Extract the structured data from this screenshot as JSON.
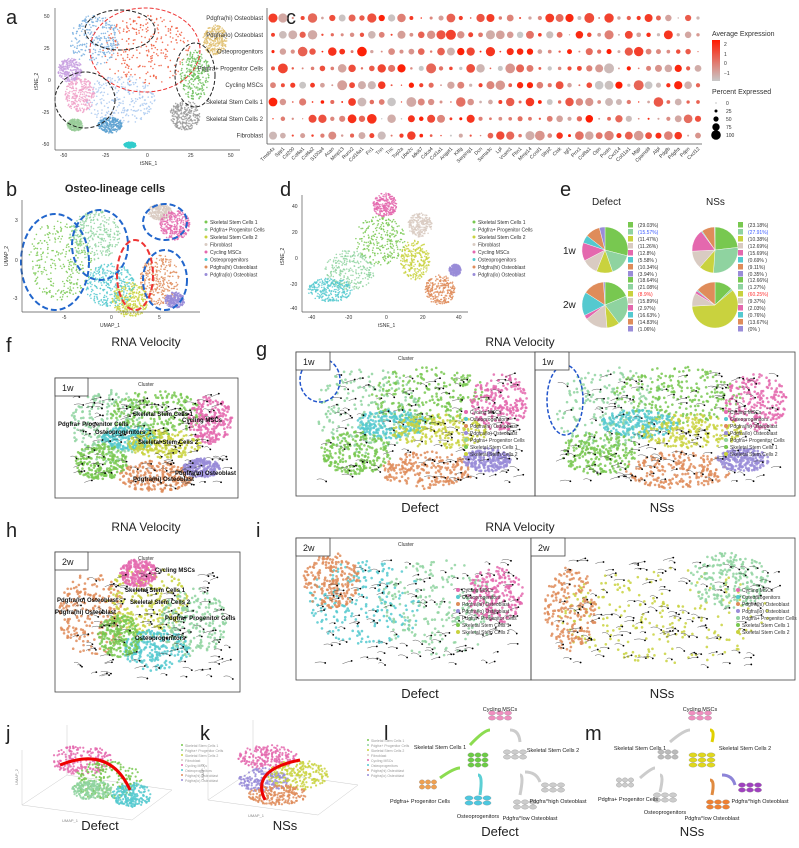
{
  "panel_letters": {
    "a": "a",
    "b": "b",
    "c": "c",
    "d": "d",
    "e": "e",
    "f": "f",
    "g": "g",
    "h": "h",
    "i": "i",
    "j": "j",
    "k": "k",
    "l": "l",
    "m": "m"
  },
  "clusters": [
    {
      "name": "Skeletal Stem Cells 1",
      "color": "#78c850"
    },
    {
      "name": "Pdgfra+ Progenitor Cells",
      "color": "#8fd3a0"
    },
    {
      "name": "Skeletal Stem Cells 2",
      "color": "#c9d23e"
    },
    {
      "name": "Fibroblast",
      "color": "#d9cbc2"
    },
    {
      "name": "Cycling MSCs",
      "color": "#e468ae"
    },
    {
      "name": "Osteoprogenitors",
      "color": "#54c9cf"
    },
    {
      "name": "Pdgfra(hi) Osteoblast",
      "color": "#df8c5a"
    },
    {
      "name": "Pdgfra(lo) Osteoblast",
      "color": "#998cd8"
    }
  ],
  "panel_a": {
    "xlabel": "tSNE_1",
    "ylabel": "tSNE_2",
    "xticks": [
      "-50",
      "-25",
      "0",
      "25",
      "50"
    ],
    "yticks": [
      "50",
      "25",
      "0",
      "-25",
      "-50"
    ]
  },
  "panel_b": {
    "title": "Osteo-lineage cells",
    "xlabel": "UMAP_1",
    "ylabel": "UMAP_2",
    "xticks": [
      "-5",
      "0",
      "5"
    ],
    "yticks": [
      "3",
      "0",
      "-3"
    ]
  },
  "panel_c": {
    "rows": [
      "Pdgfra(hi) Osteoblast",
      "Pdgfra(lo) Osteoblast",
      "Osteoprogenitors",
      "Pdgfra+ Progenitor Cells",
      "Cycling MSCs",
      "Skeletal Stem Cells 1",
      "Skeletal Stem Cells 2",
      "Fibroblast"
    ],
    "genes": [
      "Tmsb4x",
      "Spp1",
      "Cd200",
      "Col6a1",
      "Col6a2",
      "S100a4",
      "Acan",
      "Mmp13",
      "Runx2",
      "Col16a1",
      "Fn1",
      "Tnn",
      "Tnc",
      "Top2a",
      "Ube2c",
      "Mki67",
      "Cdca4",
      "Col1a1",
      "Angpt1",
      "Kitlg",
      "Serping1",
      "Dcn",
      "Sema3c",
      "Lpl",
      "Vcam1",
      "Fbn1",
      "Mmp14",
      "Ccnd1",
      "Sfrp2",
      "Ctsk",
      "Igf1",
      "Prrx1",
      "Col8a1",
      "Opn",
      "Postn",
      "Cxcl14",
      "Col11a1",
      "Mgp",
      "Cpamd8",
      "Alpl",
      "Pdgfb",
      "Pdgfra",
      "Pdpn",
      "Cxcl12"
    ],
    "legend_expr_title": "Average Expression",
    "legend_expr_ticks": [
      "2",
      "1",
      "0",
      "−1"
    ],
    "legend_pct_title": "Percent Expressed",
    "legend_pct_ticks": [
      "0",
      "25",
      "50",
      "75",
      "100"
    ],
    "color_high": "#ff1a00",
    "color_low": "#c8c8c8"
  },
  "panel_d": {
    "xlabel": "tSNE_1",
    "ylabel": "tSNE_2",
    "xticks": [
      "-40",
      "-20",
      "0",
      "20",
      "40"
    ],
    "yticks": [
      "40",
      "20",
      "0",
      "-20",
      "-40"
    ]
  },
  "panel_e": {
    "col_headers": [
      "Defect",
      "NSs"
    ],
    "row_labels": [
      "1w",
      "2w"
    ],
    "pies": [
      {
        "values": [
          29.03,
          15.57,
          11.47,
          11.26,
          12.8,
          5.58,
          10.34,
          3.94
        ],
        "labels": [
          "(29.03%)",
          "(15.57%)",
          "(11.47%)",
          "(11.26%)",
          "(12.8%)",
          "(5.58% )",
          "(10.34%)",
          "(3.94% )"
        ],
        "highlight": 1,
        "highlight_color": "#3a5bff"
      },
      {
        "values": [
          23.18,
          27.91,
          10.38,
          12.69,
          15.69,
          0.69,
          9.11,
          0.35
        ],
        "labels": [
          "(23.18%)",
          "(27.91%)",
          "(10.38%)",
          "(12.69%)",
          "(15.69%)",
          "(0.69% )",
          "(9.11%)",
          "(0.35% )"
        ],
        "highlight": 1,
        "highlight_color": "#3a5bff"
      },
      {
        "values": [
          18.64,
          21.08,
          8.9,
          15.89,
          2.97,
          16.63,
          14.83,
          1.06
        ],
        "labels": [
          "(18.64%)",
          "(21.08%)",
          "(8.9%)",
          "(15.89%)",
          "(2.97%)",
          "(16.63% )",
          "(14.83%)",
          "(1.06%)"
        ],
        "highlight": 2,
        "highlight_color": "#ff3030"
      },
      {
        "values": [
          12.66,
          1.27,
          60.25,
          9.37,
          2.03,
          0.76,
          13.67,
          0
        ],
        "labels": [
          "(12.66%)",
          "(1.27%)",
          "(60.25%)",
          "(9.37%)",
          "(2.03%)",
          "(0.76%)",
          "(13.67%)",
          "(0% )"
        ],
        "highlight": 2,
        "highlight_color": "#ff3030"
      }
    ]
  },
  "velocity": {
    "title": "RNA Velocity",
    "cluster_label": "Cluster",
    "week1": "1w",
    "week2": "2w",
    "legend": [
      "Cycling MSCs",
      "Osteoprogenitors",
      "Pdgfra(hi) Osteoblast",
      "Pdgfra(lo) Osteoblast",
      "Pdgfra+ Progenitor Cells",
      "Skeletal Stem Cells 1",
      "Skeletal Stem Cells 2"
    ],
    "f_labels": [
      "Pdgfra+ Progenitor Cells",
      "Skeletal Stem Cells 1",
      "Cycling MSCs",
      "Osteoprogenitors",
      "Skeletal Stem Cells 2",
      "Pdgfra(lo) Osteoblast",
      "Pdgfra(hi) Osteoblast"
    ],
    "h_labels": [
      "Pdgfra(lo) Osteoblast",
      "Skeletal Stem Cells 1",
      "Pdgfra(hi) Osteoblast",
      "Skeletal Stem Cells 2",
      "Pdgfra+ Progenitor Cells",
      "Osteoprogenitors",
      "Cycling MSCs"
    ]
  },
  "conditions": {
    "defect": "Defect",
    "nss": "NSs"
  },
  "panel_jk": {
    "xlabel": "UMAP_1",
    "ylabel": "UMAP_2"
  },
  "schematic": {
    "top": "Cycling MSCs",
    "ssc1": "Skeletal Stem Cells 1",
    "ssc2": "Skeletal Stem Cells 2",
    "prog": "Pdgfra+ Progenitor Cells",
    "osteoprog": "Osteoprogenitors",
    "hi": "Pdgfra^high Osteoblast",
    "lo": "Pdgfra^low Osteoblast"
  }
}
